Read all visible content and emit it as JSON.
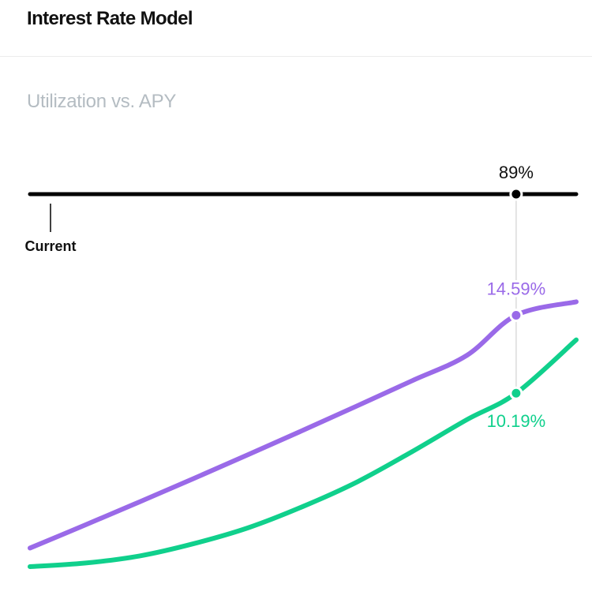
{
  "header": {
    "title": "Interest Rate Model"
  },
  "chart": {
    "subtitle": "Utilization vs. APY"
  },
  "colors": {
    "track": "#000000",
    "borrow": "#9a6ae8",
    "supply": "#10d08c",
    "guide": "#e3e3e3"
  },
  "chart_data": {
    "type": "line",
    "title": "Interest Rate Model",
    "subtitle": "Utilization vs. APY",
    "xlabel": "",
    "ylabel": "",
    "xlim": [
      0,
      100
    ],
    "ylim": [
      0,
      20
    ],
    "grid": false,
    "legend": "none",
    "x": [
      0,
      10,
      20,
      30,
      40,
      50,
      60,
      70,
      80,
      89,
      100
    ],
    "series": [
      {
        "values": [
          1.45,
          2.74,
          4.05,
          5.38,
          6.73,
          8.1,
          9.49,
          10.9,
          12.33,
          14.59,
          15.35
        ]
      },
      {
        "values": [
          0.4,
          0.6,
          1.0,
          1.7,
          2.6,
          3.8,
          5.2,
          6.9,
          8.7,
          10.19,
          13.2
        ]
      }
    ],
    "utilization_marker": {
      "current_label": "Current",
      "hover_x": 89,
      "hover_x_label": "89%",
      "borrow_value_label": "14.59%",
      "supply_value_label": "10.19%"
    }
  }
}
